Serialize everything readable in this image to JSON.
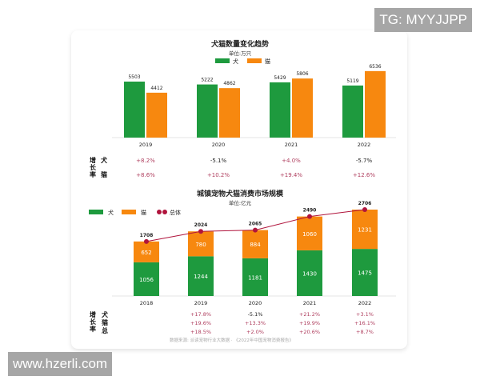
{
  "watermarks": {
    "top_right": "TG: MYYJJPP",
    "bottom_left": "www.hzerli.com"
  },
  "colors": {
    "dog": "#1e9a3e",
    "cat": "#f7880f",
    "total": "#b0143c",
    "positive": "#b04060",
    "negative": "#222222"
  },
  "growth_label": [
    "增",
    "长",
    "率"
  ],
  "source": "数据来源: 派读宠物行业大数据 · 《2022年中国宠物消费报告》",
  "chart_data": [
    {
      "type": "bar",
      "title": "犬猫数量变化趋势",
      "subtitle": "单位:万只",
      "legend": [
        "犬",
        "猫"
      ],
      "categories": [
        "2019",
        "2020",
        "2021",
        "2022"
      ],
      "series": [
        {
          "name": "犬",
          "values": [
            5503,
            5222,
            5429,
            5119
          ]
        },
        {
          "name": "猫",
          "values": [
            4412,
            4862,
            5806,
            6536
          ]
        }
      ],
      "growth": {
        "labels": [
          "犬",
          "猫"
        ],
        "rows": [
          [
            "+8.2%",
            "-5.1%",
            "+4.0%",
            "-5.7%"
          ],
          [
            "+8.6%",
            "+10.2%",
            "+19.4%",
            "+12.6%"
          ]
        ]
      }
    },
    {
      "type": "bar",
      "stacked": true,
      "title": "城镇宠物犬猫消费市场规模",
      "subtitle": "单位:亿元",
      "legend": [
        "犬",
        "猫",
        "总体"
      ],
      "categories": [
        "2018",
        "2019",
        "2020",
        "2021",
        "2022"
      ],
      "series": [
        {
          "name": "犬",
          "values": [
            1056,
            1244,
            1181,
            1430,
            1475
          ]
        },
        {
          "name": "猫",
          "values": [
            652,
            780,
            884,
            1060,
            1231
          ]
        },
        {
          "name": "总体",
          "values": [
            1708,
            2024,
            2065,
            2490,
            2706
          ],
          "type": "line"
        }
      ],
      "growth": {
        "labels": [
          "犬",
          "猫",
          "总"
        ],
        "rows": [
          [
            "",
            "+17.8%",
            "-5.1%",
            "+21.2%",
            "+3.1%"
          ],
          [
            "",
            "+19.6%",
            "+13.3%",
            "+19.9%",
            "+16.1%"
          ],
          [
            "",
            "+18.5%",
            "+2.0%",
            "+20.6%",
            "+8.7%"
          ]
        ]
      }
    }
  ]
}
